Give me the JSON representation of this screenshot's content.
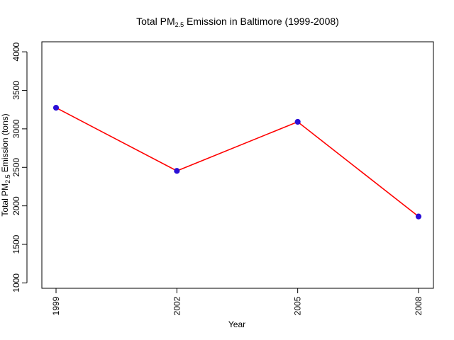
{
  "chart_data": {
    "type": "line",
    "title": {
      "pre": "Total PM",
      "sub": "2.5",
      "post": " Emission in Baltimore (1999-2008)"
    },
    "xlabel": "Year",
    "ylabel": {
      "pre": "Total PM",
      "sub": "2.5",
      "post": " Emission (tons)"
    },
    "categories": [
      "1999",
      "2002",
      "2005",
      "2008"
    ],
    "series": [
      {
        "values": [
          3274,
          2454,
          3091,
          1862
        ]
      }
    ],
    "ylim": [
      930,
      4130
    ],
    "yticks": [
      1000,
      1500,
      2000,
      2500,
      3000,
      3500,
      4000
    ],
    "grid": false,
    "line_color": "#ff0000",
    "point_color": "#2a0fd6"
  }
}
